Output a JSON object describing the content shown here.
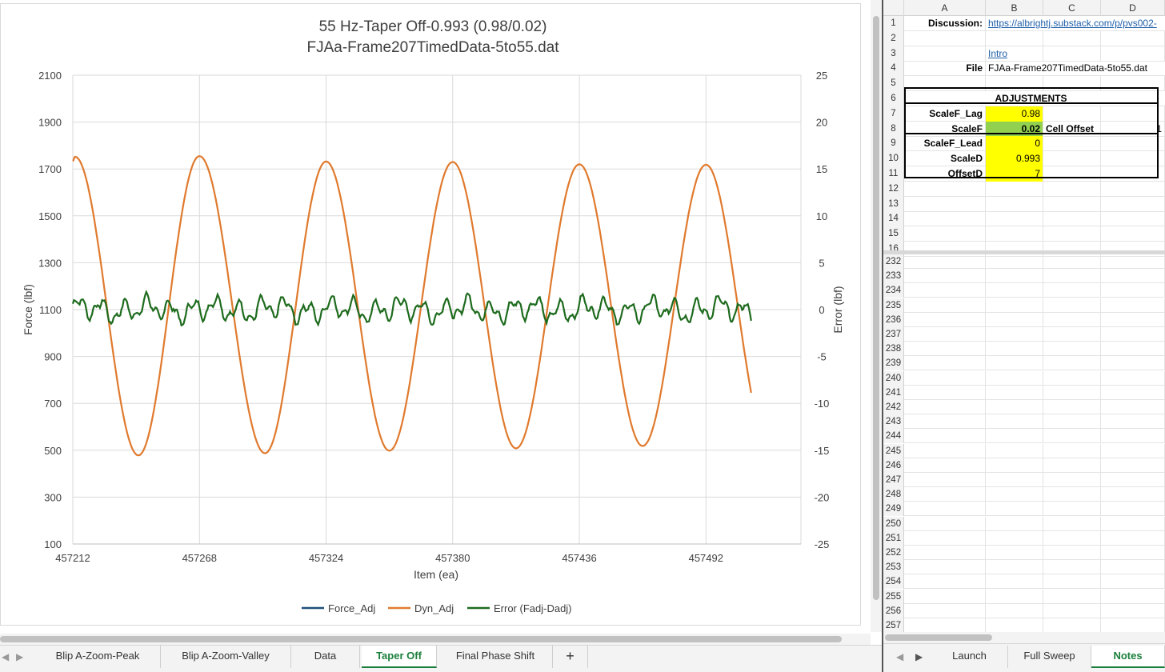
{
  "chart": {
    "title": "55 Hz-Taper Off-0.993 (0.98/0.02)",
    "subtitle": "FJAa-Frame207TimedData-5to55.dat",
    "xlabel": "Item (ea)",
    "ylabel_left": "Force (lbf)",
    "ylabel_right": "Error (lbf)"
  },
  "chart_data": {
    "type": "line",
    "title": "55 Hz-Taper Off-0.993 (0.98/0.02)",
    "subtitle": "FJAa-Frame207TimedData-5to55.dat",
    "xlabel": "Item (ea)",
    "ylabel": "Force (lbf)",
    "y2label": "Error (lbf)",
    "xlim": [
      457212,
      457534
    ],
    "ylim": [
      100,
      2100
    ],
    "y2lim": [
      -25,
      25
    ],
    "xticks": [
      "457212",
      "457268",
      "457324",
      "457380",
      "457436",
      "457492"
    ],
    "yticks": [
      "2100",
      "1900",
      "1700",
      "1500",
      "1300",
      "1100",
      "900",
      "700",
      "500",
      "300",
      "100"
    ],
    "y2ticks": [
      "25",
      "20",
      "15",
      "10",
      "5",
      "0",
      "-5",
      "-10",
      "-15",
      "-20",
      "-25"
    ],
    "grid": true,
    "legend_position": "bottom",
    "series": [
      {
        "name": "Force_Adj",
        "color": "#1f4e79",
        "axis": "left",
        "values": []
      },
      {
        "name": "Dyn_Adj",
        "color": "#e07a2e",
        "axis": "left",
        "peaks": [
          [
            457213,
            1752
          ],
          [
            457268,
            1755
          ],
          [
            457324,
            1732
          ],
          [
            457380,
            1730
          ],
          [
            457436,
            1720
          ],
          [
            457492,
            1718
          ]
        ],
        "troughs": [
          [
            457241,
            478
          ],
          [
            457297,
            487
          ],
          [
            457352,
            498
          ],
          [
            457408,
            508
          ],
          [
            457464,
            518
          ]
        ],
        "end": [
          457512,
          720
        ]
      },
      {
        "name": "Error (Fadj-Dadj)",
        "color": "#1e6b1e",
        "axis": "right",
        "range": [
          -2,
          2.2
        ]
      }
    ]
  },
  "legend": [
    "Force_Adj",
    "Dyn_Adj",
    "Error (Fadj-Dadj)"
  ],
  "tabs_left": [
    {
      "label": "Blip A-Zoom-Peak"
    },
    {
      "label": "Blip A-Zoom-Valley"
    },
    {
      "label": "Data"
    },
    {
      "label": "Taper Off",
      "active": true
    },
    {
      "label": "Final Phase Shift"
    },
    {
      "label": "+"
    }
  ],
  "sheet": {
    "columns": [
      "A",
      "B",
      "C",
      "D"
    ],
    "rows_top": [
      {
        "n": "1",
        "a": "Discussion:",
        "b": "https://albrightj.substack.com/p/pvs002-"
      },
      {
        "n": "2"
      },
      {
        "n": "3",
        "b": "Intro"
      },
      {
        "n": "4",
        "a": "File",
        "b": "FJAa-Frame207TimedData-5to55.dat"
      },
      {
        "n": "5"
      },
      {
        "n": "6",
        "header": "ADJUSTMENTS"
      },
      {
        "n": "7",
        "a": "ScaleF_Lag",
        "b": "0.98"
      },
      {
        "n": "8",
        "a": "ScaleF",
        "b": "0.02",
        "c": "Cell Offset",
        "d": "1"
      },
      {
        "n": "9",
        "a": "ScaleF_Lead",
        "b": "0"
      },
      {
        "n": "10",
        "a": "ScaleD",
        "b": "0.993"
      },
      {
        "n": "11",
        "a": "OffsetD",
        "b": "7"
      },
      {
        "n": "12"
      },
      {
        "n": "13"
      },
      {
        "n": "14"
      },
      {
        "n": "15"
      },
      {
        "n": "16"
      }
    ],
    "rows_bottom": [
      "232",
      "233",
      "234",
      "235",
      "236",
      "237",
      "238",
      "239",
      "240",
      "241",
      "242",
      "243",
      "244",
      "245",
      "246",
      "247",
      "248",
      "249",
      "250",
      "251",
      "252",
      "253",
      "254",
      "255",
      "256",
      "257"
    ]
  },
  "tabs_right": [
    {
      "label": "Launch"
    },
    {
      "label": "Full Sweep"
    },
    {
      "label": "Notes",
      "active": true
    }
  ]
}
